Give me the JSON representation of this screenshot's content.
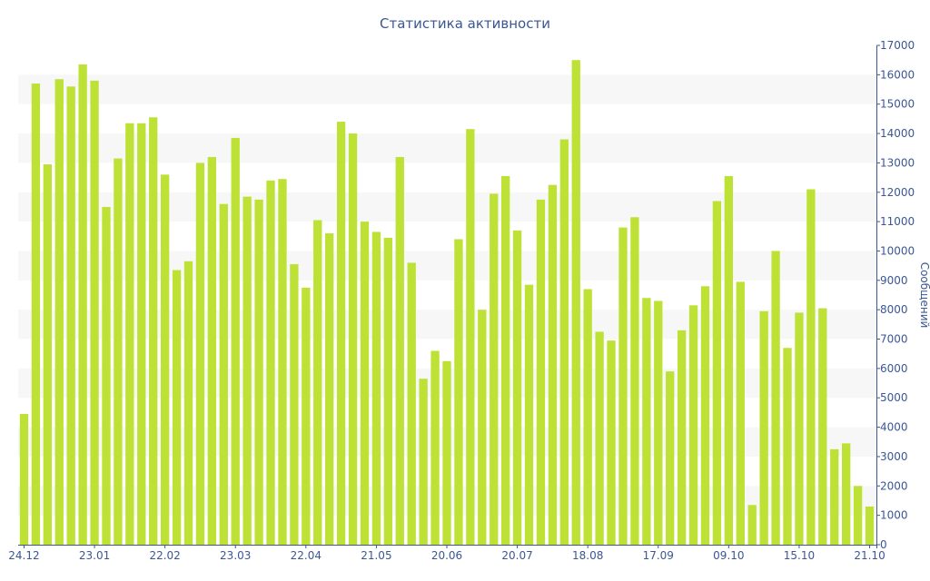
{
  "chart_data": {
    "type": "bar",
    "title": "Статистика активности",
    "ylabel": "Сообщений",
    "xlabel": "",
    "ylim": [
      0,
      17000
    ],
    "y_ticks": [
      0,
      1000,
      2000,
      3000,
      4000,
      5000,
      6000,
      7000,
      8000,
      9000,
      10000,
      11000,
      12000,
      13000,
      14000,
      15000,
      16000,
      17000
    ],
    "y_axis_side": "right",
    "grid": "alternating horizontal bands",
    "x_tick_labels": [
      {
        "label": "24.12",
        "index": 0
      },
      {
        "label": "23.01",
        "index": 6
      },
      {
        "label": "22.02",
        "index": 12
      },
      {
        "label": "23.03",
        "index": 18
      },
      {
        "label": "22.04",
        "index": 24
      },
      {
        "label": "21.05",
        "index": 30
      },
      {
        "label": "20.06",
        "index": 36
      },
      {
        "label": "20.07",
        "index": 42
      },
      {
        "label": "18.08",
        "index": 48
      },
      {
        "label": "17.09",
        "index": 54
      },
      {
        "label": "09.10",
        "index": 60
      },
      {
        "label": "15.10",
        "index": 66
      },
      {
        "label": "21.10",
        "index": 72
      }
    ],
    "values": [
      4450,
      15700,
      12950,
      15850,
      15600,
      16350,
      15800,
      11500,
      13150,
      14350,
      14350,
      14550,
      12600,
      9350,
      9650,
      13000,
      13200,
      11600,
      13850,
      11850,
      11750,
      12400,
      12450,
      9550,
      8750,
      11050,
      10600,
      14400,
      14000,
      11000,
      10650,
      10450,
      13200,
      9600,
      5650,
      6600,
      6250,
      10400,
      14150,
      8000,
      11950,
      12550,
      10700,
      8850,
      11750,
      12250,
      13800,
      16500,
      8700,
      7250,
      6950,
      10800,
      11150,
      8400,
      8300,
      5900,
      7300,
      8150,
      8800,
      11700,
      12550,
      8950,
      1350,
      7950,
      10000,
      6700,
      7900,
      12100,
      8050,
      3250,
      3450,
      2000,
      1300
    ],
    "colors": {
      "bar": "#bde135",
      "band": "#f7f7f7",
      "text": "#3a5794",
      "axis": "#3a5794"
    }
  }
}
